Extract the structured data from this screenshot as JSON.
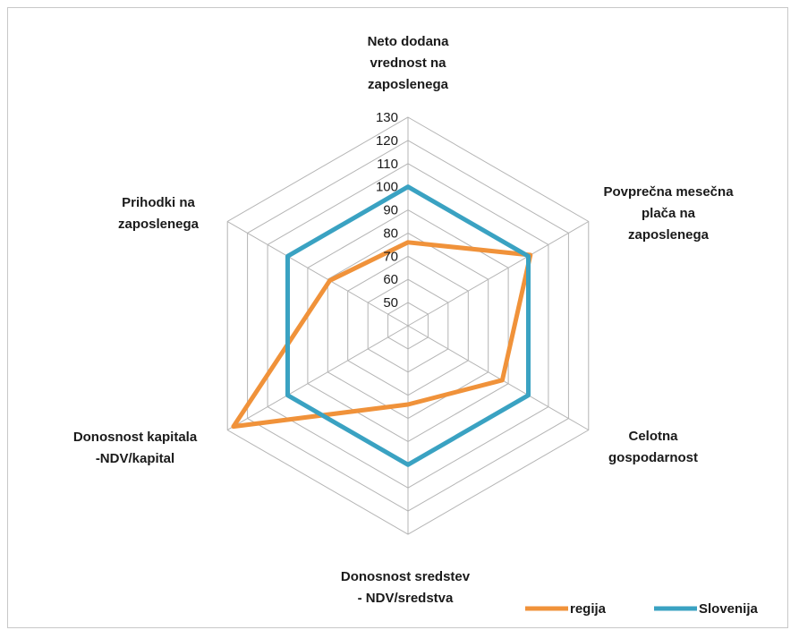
{
  "chart_data": {
    "type": "radar",
    "axes": [
      [
        "Neto dodana",
        "vrednost na",
        "zaposlenega"
      ],
      [
        "Povprečna mesečna",
        "plača na",
        "zaposlenega"
      ],
      [
        "Celotna",
        "gospodarnost"
      ],
      [
        "Donosnost sredstev",
        "- NDV/sredstva"
      ],
      [
        "Donosnost kapitala",
        "-NDV/kapital"
      ],
      [
        "Prihodki na",
        "zaposlenega"
      ]
    ],
    "r_ticks": [
      "50",
      "60",
      "70",
      "80",
      "90",
      "100",
      "110",
      "120",
      "130"
    ],
    "r_range": [
      40,
      130
    ],
    "grid": true,
    "legend_position": "bottom-right",
    "series": [
      {
        "name": "regija",
        "color": "#f0923a",
        "values": [
          76,
          101,
          87,
          74,
          127,
          79
        ]
      },
      {
        "name": "Slovenija",
        "color": "#3aa2c2",
        "values": [
          100,
          100,
          100,
          100,
          100,
          100
        ]
      }
    ]
  }
}
